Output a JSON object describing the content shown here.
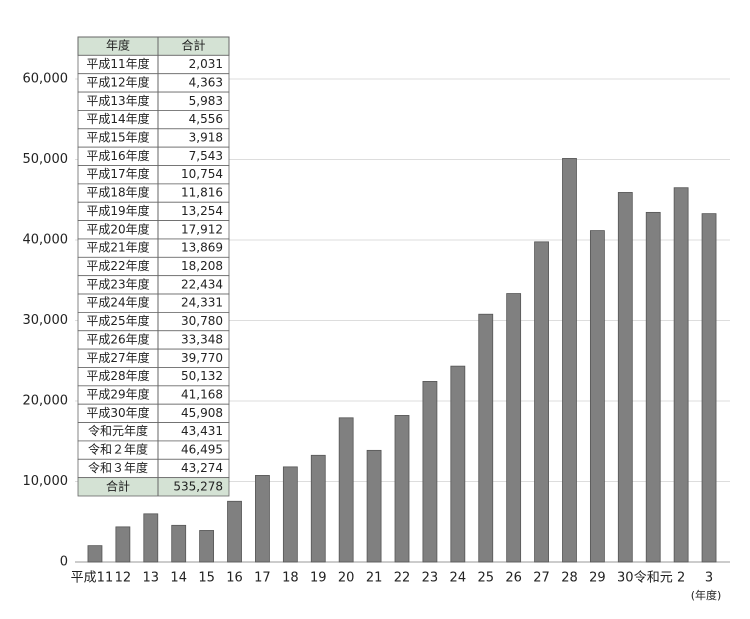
{
  "chart_data": {
    "type": "bar",
    "categories": [
      "平成11",
      "12",
      "13",
      "14",
      "15",
      "16",
      "17",
      "18",
      "19",
      "20",
      "21",
      "22",
      "23",
      "24",
      "25",
      "26",
      "27",
      "28",
      "29",
      "30",
      "令和元",
      "2",
      "3"
    ],
    "values": [
      2031,
      4363,
      5983,
      4556,
      3918,
      7543,
      10754,
      11816,
      13254,
      17912,
      13869,
      18208,
      22434,
      24331,
      30780,
      33348,
      39770,
      50132,
      41168,
      45908,
      43431,
      46495,
      43274
    ],
    "color": "#808080",
    "x_label": "(年度)",
    "ylim": [
      0,
      60000
    ],
    "yticks": [
      0,
      {
        "value": 10000,
        "label": "10,000"
      },
      {
        "value": 20000,
        "label": "20,000"
      },
      {
        "value": 30000,
        "label": "30,000"
      },
      {
        "value": 40000,
        "label": "40,000"
      },
      {
        "value": 50000,
        "label": "50,000"
      },
      {
        "value": 60000,
        "label": "60,000"
      }
    ],
    "grid": true
  },
  "table": {
    "header": [
      "年度",
      "合計"
    ],
    "rows": [
      [
        "平成11年度",
        "2,031"
      ],
      [
        "平成12年度",
        "4,363"
      ],
      [
        "平成13年度",
        "5,983"
      ],
      [
        "平成14年度",
        "4,556"
      ],
      [
        "平成15年度",
        "3,918"
      ],
      [
        "平成16年度",
        "7,543"
      ],
      [
        "平成17年度",
        "10,754"
      ],
      [
        "平成18年度",
        "11,816"
      ],
      [
        "平成19年度",
        "13,254"
      ],
      [
        "平成20年度",
        "17,912"
      ],
      [
        "平成21年度",
        "13,869"
      ],
      [
        "平成22年度",
        "18,208"
      ],
      [
        "平成23年度",
        "22,434"
      ],
      [
        "平成24年度",
        "24,331"
      ],
      [
        "平成25年度",
        "30,780"
      ],
      [
        "平成26年度",
        "33,348"
      ],
      [
        "平成27年度",
        "39,770"
      ],
      [
        "平成28年度",
        "50,132"
      ],
      [
        "平成29年度",
        "41,168"
      ],
      [
        "平成30年度",
        "45,908"
      ],
      [
        "令和元年度",
        "43,431"
      ],
      [
        "令和２年度",
        "46,495"
      ],
      [
        "令和３年度",
        "43,274"
      ],
      [
        "合計",
        "535,278"
      ]
    ]
  }
}
